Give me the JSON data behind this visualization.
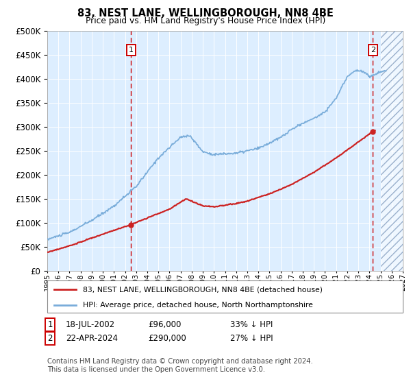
{
  "title": "83, NEST LANE, WELLINGBOROUGH, NN8 4BE",
  "subtitle": "Price paid vs. HM Land Registry's House Price Index (HPI)",
  "hpi_color": "#7aadda",
  "price_color": "#cc2222",
  "marker_color": "#cc2222",
  "bg_color": "#ddeeff",
  "ylim": [
    0,
    500000
  ],
  "yticks": [
    0,
    50000,
    100000,
    150000,
    200000,
    250000,
    300000,
    350000,
    400000,
    450000,
    500000
  ],
  "sale1_x": 2002.54,
  "sale1_y": 96000,
  "sale1_label": "1",
  "sale1_date": "18-JUL-2002",
  "sale1_price": "£96,000",
  "sale1_hpi": "33% ↓ HPI",
  "sale2_x": 2024.31,
  "sale2_y": 290000,
  "sale2_label": "2",
  "sale2_date": "22-APR-2024",
  "sale2_price": "£290,000",
  "sale2_hpi": "27% ↓ HPI",
  "legend_line1": "83, NEST LANE, WELLINGBOROUGH, NN8 4BE (detached house)",
  "legend_line2": "HPI: Average price, detached house, North Northamptonshire",
  "footnote": "Contains HM Land Registry data © Crown copyright and database right 2024.\nThis data is licensed under the Open Government Licence v3.0.",
  "xmin": 1995,
  "xmax": 2027,
  "future_x_start": 2025.0
}
